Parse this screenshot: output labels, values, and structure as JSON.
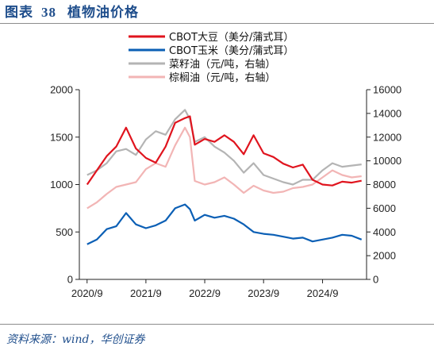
{
  "header": {
    "label": "图表",
    "number": "38",
    "text": "植物油价格"
  },
  "footer": {
    "source": "资料来源：wind，华创证券"
  },
  "chart_data": {
    "type": "line",
    "x_ticks": [
      "2020/9",
      "2021/9",
      "2022/9",
      "2023/9",
      "2024/9"
    ],
    "left_axis": {
      "ylim": [
        0,
        2000
      ],
      "ticks": [
        "0",
        "500",
        "1000",
        "1500",
        "2000"
      ]
    },
    "right_axis": {
      "ylim": [
        0,
        16000
      ],
      "ticks": [
        "0",
        "2000",
        "4000",
        "6000",
        "8000",
        "10000",
        "12000",
        "14000",
        "16000"
      ]
    },
    "legend_position": "top",
    "series": [
      {
        "name": "CBOT大豆（美分/蒲式耳）",
        "axis": "left",
        "color": "#e0141e",
        "x": [
          "2020-09",
          "2020-11",
          "2021-01",
          "2021-03",
          "2021-05",
          "2021-07",
          "2021-09",
          "2021-11",
          "2022-01",
          "2022-03",
          "2022-05",
          "2022-06",
          "2022-07",
          "2022-09",
          "2022-11",
          "2023-01",
          "2023-03",
          "2023-05",
          "2023-07",
          "2023-09",
          "2023-11",
          "2024-01",
          "2024-03",
          "2024-05",
          "2024-07",
          "2024-09",
          "2024-11",
          "2025-01",
          "2025-03",
          "2025-05"
        ],
        "values": [
          1000,
          1150,
          1300,
          1400,
          1600,
          1380,
          1280,
          1230,
          1400,
          1650,
          1700,
          1720,
          1420,
          1480,
          1450,
          1520,
          1450,
          1320,
          1520,
          1330,
          1290,
          1220,
          1180,
          1210,
          1050,
          1000,
          990,
          1030,
          1020,
          1040
        ]
      },
      {
        "name": "CBOT玉米（美分/蒲式耳）",
        "axis": "left",
        "color": "#0b5fb5",
        "x": [
          "2020-09",
          "2020-11",
          "2021-01",
          "2021-03",
          "2021-05",
          "2021-07",
          "2021-09",
          "2021-11",
          "2022-01",
          "2022-03",
          "2022-05",
          "2022-06",
          "2022-07",
          "2022-09",
          "2022-11",
          "2023-01",
          "2023-03",
          "2023-05",
          "2023-07",
          "2023-09",
          "2023-11",
          "2024-01",
          "2024-03",
          "2024-05",
          "2024-07",
          "2024-09",
          "2024-11",
          "2025-01",
          "2025-03",
          "2025-05"
        ],
        "values": [
          370,
          420,
          530,
          560,
          700,
          580,
          540,
          570,
          620,
          750,
          790,
          740,
          620,
          680,
          650,
          670,
          640,
          580,
          500,
          480,
          470,
          450,
          430,
          440,
          400,
          420,
          440,
          470,
          460,
          420
        ]
      },
      {
        "name": "菜籽油（元/吨，右轴）",
        "axis": "right",
        "color": "#b4b4b4",
        "x": [
          "2020-09",
          "2020-11",
          "2021-01",
          "2021-03",
          "2021-05",
          "2021-07",
          "2021-09",
          "2021-11",
          "2022-01",
          "2022-03",
          "2022-05",
          "2022-06",
          "2022-07",
          "2022-09",
          "2022-11",
          "2023-01",
          "2023-03",
          "2023-05",
          "2023-07",
          "2023-09",
          "2023-11",
          "2024-01",
          "2024-03",
          "2024-05",
          "2024-07",
          "2024-09",
          "2024-11",
          "2025-01",
          "2025-03",
          "2025-05"
        ],
        "values": [
          8800,
          9200,
          9800,
          10800,
          11000,
          10500,
          11800,
          12500,
          12200,
          13500,
          14300,
          13500,
          11600,
          12000,
          11200,
          10700,
          10000,
          9000,
          9800,
          8800,
          8500,
          8200,
          8000,
          8400,
          8400,
          9200,
          9800,
          9500,
          9600,
          9700
        ]
      },
      {
        "name": "棕榈油（元/吨，右轴）",
        "axis": "right",
        "color": "#f2b5b5",
        "x": [
          "2020-09",
          "2020-11",
          "2021-01",
          "2021-03",
          "2021-05",
          "2021-07",
          "2021-09",
          "2021-11",
          "2022-01",
          "2022-03",
          "2022-05",
          "2022-06",
          "2022-07",
          "2022-09",
          "2022-11",
          "2023-01",
          "2023-03",
          "2023-05",
          "2023-07",
          "2023-09",
          "2023-11",
          "2024-01",
          "2024-03",
          "2024-05",
          "2024-07",
          "2024-09",
          "2024-11",
          "2025-01",
          "2025-03",
          "2025-05"
        ],
        "values": [
          6000,
          6500,
          7200,
          7800,
          8000,
          8200,
          9300,
          9800,
          9500,
          11300,
          12800,
          12000,
          8300,
          8000,
          8200,
          8600,
          8000,
          7300,
          7900,
          7500,
          7300,
          7400,
          7700,
          7800,
          8000,
          8600,
          9200,
          8800,
          8600,
          8700
        ]
      }
    ]
  }
}
